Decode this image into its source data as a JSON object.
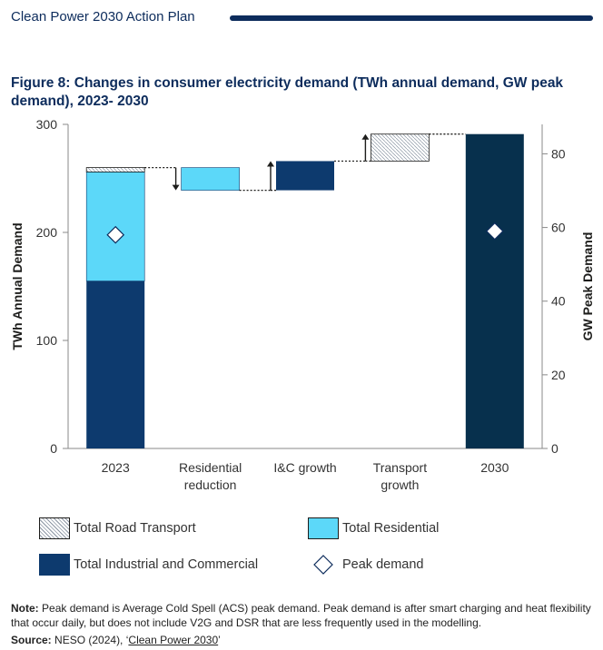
{
  "header": {
    "title": "Clean Power 2030 Action Plan"
  },
  "figure": {
    "title": "Figure 8: Changes in consumer electricity demand (TWh annual demand, GW peak demand), 2023- 2030"
  },
  "colors": {
    "industrial": "#0d3a6e",
    "residential": "#5cd8f9",
    "road_transport": "#d9dde3",
    "final_bar": "#07304d",
    "axis": "#8a8a8a",
    "title": "#0d2c5c"
  },
  "chart_data": {
    "type": "bar",
    "subtype": "waterfall",
    "categories": [
      "2023",
      "Residential\nreduction",
      "I&C growth",
      "Transport\ngrowth",
      "2030"
    ],
    "ylabel": "TWh Annual Demand",
    "y2label": "GW Peak Demand",
    "ylim": [
      0,
      300
    ],
    "yticks": [
      0,
      100,
      200,
      300
    ],
    "y2lim": [
      0,
      88
    ],
    "y2ticks": [
      0,
      20,
      40,
      60,
      80
    ],
    "grid": false,
    "bars": [
      {
        "category": "2023",
        "stack": [
          {
            "series": "Total Industrial and Commercial",
            "bottom": 0,
            "top": 155
          },
          {
            "series": "Total Residential",
            "bottom": 155,
            "top": 256
          },
          {
            "series": "Total Road Transport",
            "bottom": 256,
            "top": 260
          }
        ]
      },
      {
        "category": "Residential\nreduction",
        "series": "Total Residential",
        "bottom": 239,
        "top": 260,
        "direction": "down"
      },
      {
        "category": "I&C growth",
        "series": "Total Industrial and Commercial",
        "bottom": 239,
        "top": 266,
        "direction": "up"
      },
      {
        "category": "Transport\ngrowth",
        "series": "Total Road Transport",
        "bottom": 266,
        "top": 291,
        "direction": "up"
      },
      {
        "category": "2030",
        "series": "Total",
        "bottom": 0,
        "top": 291
      }
    ],
    "peak_demand_gw": [
      {
        "category": "2023",
        "value": 58
      },
      {
        "category": "2030",
        "value": 59
      }
    ],
    "legend": [
      {
        "label": "Total Road Transport",
        "key": "road"
      },
      {
        "label": "Total Residential",
        "key": "residential"
      },
      {
        "label": "Total Industrial and Commercial",
        "key": "industrial"
      },
      {
        "label": "Peak demand",
        "key": "peak"
      }
    ],
    "legend_position": "bottom"
  },
  "note": {
    "label": "Note:",
    "text": "Peak demand is Average Cold Spell (ACS) peak demand. Peak demand is after smart charging and heat flexibility that occur daily, but does not include V2G and DSR that are less frequently used in the modelling."
  },
  "source": {
    "label": "Source:",
    "text_before": "NESO (2024), ‘",
    "link_text": "Clean Power 2030",
    "text_after": "’"
  }
}
